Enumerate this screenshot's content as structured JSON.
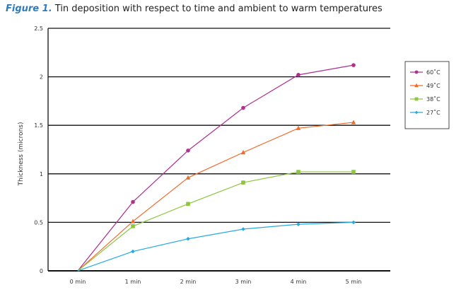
{
  "figure": {
    "label": "Figure 1.",
    "caption": "Tin deposition with respect to time and ambient to warm temperatures"
  },
  "chart_data": {
    "type": "line",
    "categories": [
      "0 min",
      "1 min",
      "2 min",
      "3 min",
      "4 min",
      "5 min"
    ],
    "ylabel": "Thickness (microns)",
    "xlabel": "",
    "ylim": [
      0,
      2.5
    ],
    "y_ticks": [
      "0",
      "0.5",
      "1",
      "1.5",
      "2",
      "2.5"
    ],
    "grid": "horizontal",
    "legend_position": "right",
    "series": [
      {
        "name": "60˚C",
        "color": "#b0308f",
        "marker": "circle",
        "values": [
          0,
          0.71,
          1.24,
          1.68,
          2.02,
          2.12
        ]
      },
      {
        "name": "49˚C",
        "color": "#f06a2a",
        "marker": "triangle",
        "values": [
          0,
          0.51,
          0.96,
          1.22,
          1.47,
          1.53
        ]
      },
      {
        "name": "38˚C",
        "color": "#8dc63f",
        "marker": "square",
        "values": [
          0,
          0.46,
          0.69,
          0.91,
          1.02,
          1.02
        ]
      },
      {
        "name": "27˚C",
        "color": "#27aae1",
        "marker": "diamond",
        "values": [
          0,
          0.2,
          0.33,
          0.43,
          0.48,
          0.5
        ]
      }
    ]
  }
}
